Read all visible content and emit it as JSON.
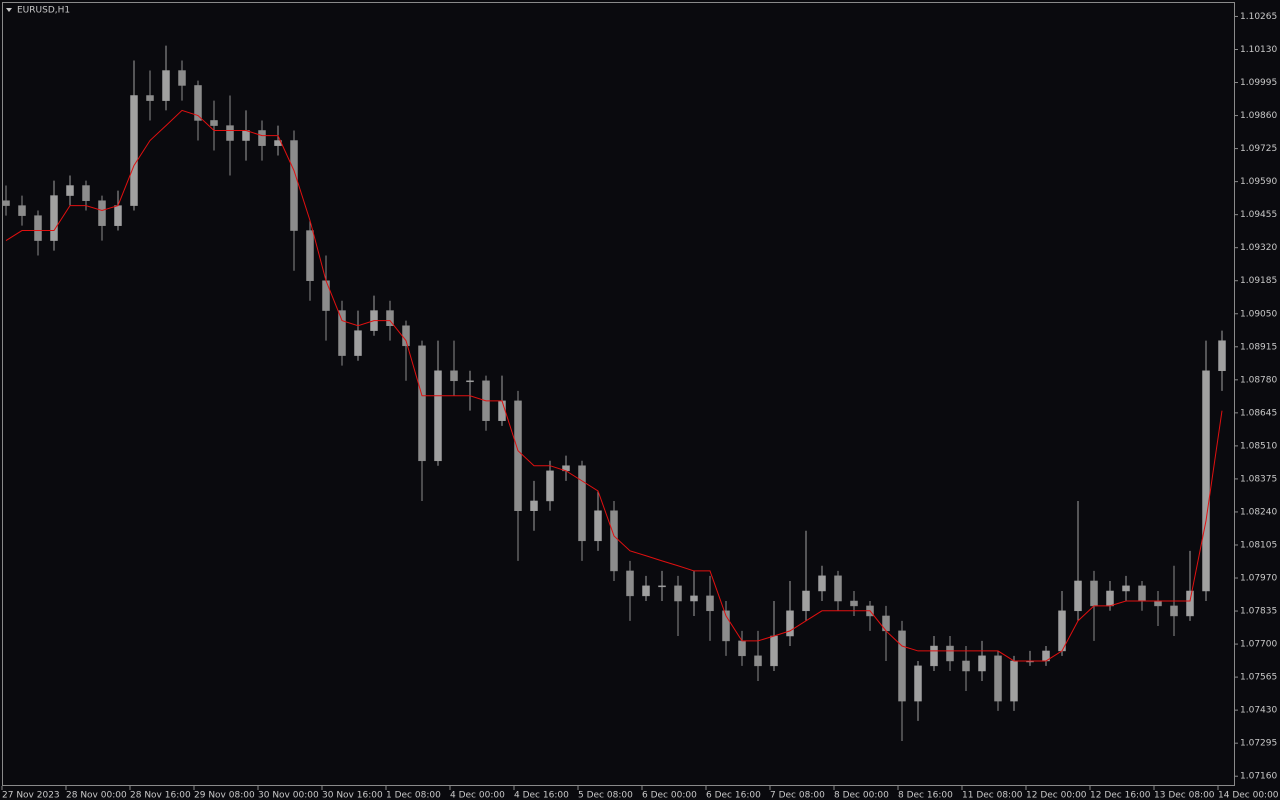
{
  "chart_data": {
    "type": "candlestick",
    "title": "EURUSD,H1",
    "up_color": "#a0a0a0",
    "down_color": "#8c8c8c",
    "grid": false,
    "ylim": [
      1.0712,
      1.1032
    ],
    "yticks": [
      1.10265,
      {
        "value": 1.1013,
        "label": "1.10130"
      },
      1.09995,
      {
        "value": 1.0986,
        "label": "1.09860"
      },
      1.09725,
      {
        "value": 1.0959,
        "label": "1.09590"
      },
      1.09455,
      {
        "value": 1.0932,
        "label": "1.09320"
      },
      1.09185,
      {
        "value": 1.0905,
        "label": "1.09050"
      },
      1.08915,
      {
        "value": 1.0878,
        "label": "1.08780"
      },
      1.08645,
      {
        "value": 1.0851,
        "label": "1.08510"
      },
      1.08375,
      {
        "value": 1.0824,
        "label": "1.08240"
      },
      1.08105,
      {
        "value": 1.0797,
        "label": "1.07970"
      },
      1.07835,
      {
        "value": 1.077,
        "label": "1.07700"
      },
      1.07565,
      {
        "value": 1.0743,
        "label": "1.07430"
      },
      1.07295,
      {
        "value": 1.0716,
        "label": "1.07160"
      }
    ],
    "categories": [
      "27 Nov 2023",
      null,
      null,
      null,
      "28 Nov 00:00",
      null,
      null,
      null,
      "28 Nov 16:00",
      null,
      null,
      null,
      "29 Nov 08:00",
      null,
      null,
      null,
      "30 Nov 00:00",
      null,
      null,
      null,
      "30 Nov 16:00",
      null,
      null,
      null,
      "1 Dec 08:00",
      null,
      null,
      null,
      "4 Dec 00:00",
      null,
      null,
      null,
      "4 Dec 16:00",
      null,
      null,
      null,
      "5 Dec 08:00",
      null,
      null,
      null,
      "6 Dec 00:00",
      null,
      null,
      null,
      "6 Dec 16:00",
      null,
      null,
      null,
      "7 Dec 08:00",
      null,
      null,
      null,
      "8 Dec 00:00",
      null,
      null,
      null,
      "8 Dec 16:00",
      null,
      null,
      null,
      "11 Dec 08:00",
      null,
      null,
      null,
      "12 Dec 00:00",
      null,
      null,
      null,
      "12 Dec 16:00",
      null,
      null,
      null,
      "13 Dec 08:00",
      null,
      null,
      null,
      "14 Dec 00:00"
    ],
    "open": [
      1.09512,
      1.09492,
      1.09451,
      1.09349,
      1.09533,
      1.09574,
      1.09512,
      1.0941,
      1.09492,
      1.09942,
      1.09921,
      1.10044,
      1.09983,
      1.0984,
      1.09819,
      1.09758,
      1.09799,
      1.09737,
      1.09758,
      1.0939,
      1.09185,
      1.09063,
      1.08879,
      1.08981,
      1.09063,
      1.09001,
      1.08919,
      1.08449,
      1.08817,
      1.08776,
      1.08776,
      1.08613,
      1.08694,
      1.08245,
      1.08285,
      1.08408,
      1.08429,
      1.08122,
      1.08245,
      1.07999,
      1.07897,
      1.07938,
      1.07938,
      1.07876,
      1.07897,
      1.07836,
      1.07713,
      1.07652,
      1.07611,
      1.07733,
      1.07836,
      1.07917,
      1.07979,
      1.07876,
      1.07856,
      1.07815,
      1.07754,
      1.07467,
      1.07611,
      1.07692,
      1.07631,
      1.0759,
      1.07652,
      1.07467,
      1.07631,
      1.07631,
      1.07672,
      1.07836,
      1.07958,
      1.07856,
      1.07917,
      1.07938,
      1.07876,
      1.07856,
      1.07815,
      1.07917,
      1.08817
    ],
    "high": [
      1.09574,
      1.09533,
      1.09472,
      1.09594,
      1.09615,
      1.09594,
      1.09533,
      1.09553,
      1.10085,
      1.10044,
      1.10146,
      1.10085,
      1.10003,
      1.09921,
      1.09942,
      1.09881,
      1.0984,
      1.09819,
      1.09799,
      1.09431,
      1.09288,
      1.09103,
      1.09063,
      1.09124,
      1.09103,
      1.09022,
      1.0894,
      1.0894,
      1.0894,
      1.08817,
      1.08797,
      1.08797,
      1.08735,
      1.08367,
      1.08449,
      1.0847,
      1.08449,
      1.08326,
      1.08285,
      1.0804,
      1.07979,
      1.07999,
      1.07979,
      1.07999,
      1.07979,
      1.07876,
      1.07754,
      1.07754,
      1.07876,
      1.07958,
      1.08163,
      1.0802,
      1.07999,
      1.07917,
      1.07876,
      1.07856,
      1.07795,
      1.07631,
      1.07733,
      1.07733,
      1.07692,
      1.07713,
      1.07672,
      1.07652,
      1.07672,
      1.07692,
      1.07917,
      1.08285,
      1.07999,
      1.07958,
      1.07979,
      1.07958,
      1.07917,
      1.0802,
      1.08081,
      1.0894,
      1.08981
    ],
    "low": [
      1.09451,
      1.0941,
      1.09288,
      1.09308,
      1.09492,
      1.09472,
      1.09349,
      1.0939,
      1.09472,
      1.0984,
      1.09881,
      1.09921,
      1.09758,
      1.09717,
      1.09615,
      1.09676,
      1.09676,
      1.09697,
      1.09226,
      1.09103,
      1.0894,
      1.08838,
      1.08858,
      1.0896,
      1.0894,
      1.08776,
      1.08285,
      1.08429,
      1.08715,
      1.08654,
      1.08572,
      1.08592,
      1.0804,
      1.08163,
      1.08245,
      1.08367,
      1.0804,
      1.08081,
      1.07958,
      1.07795,
      1.07876,
      1.07876,
      1.07733,
      1.07815,
      1.07713,
      1.07652,
      1.07611,
      1.07549,
      1.0759,
      1.07692,
      1.07795,
      1.07876,
      1.07836,
      1.07815,
      1.07754,
      1.07631,
      1.07304,
      1.07386,
      1.0759,
      1.0759,
      1.07508,
      1.07549,
      1.07427,
      1.07427,
      1.07611,
      1.07611,
      1.07652,
      1.07795,
      1.07713,
      1.07836,
      1.07876,
      1.07836,
      1.07774,
      1.07733,
      1.07795,
      1.07876,
      1.08735
    ],
    "close": [
      1.09492,
      1.09451,
      1.09349,
      1.09533,
      1.09574,
      1.09512,
      1.0941,
      1.09492,
      1.09942,
      1.09921,
      1.10044,
      1.09983,
      1.0984,
      1.09819,
      1.09758,
      1.09799,
      1.09737,
      1.09758,
      1.0939,
      1.09185,
      1.09063,
      1.08879,
      1.08981,
      1.09063,
      1.09001,
      1.08919,
      1.08449,
      1.08817,
      1.08776,
      1.08776,
      1.08613,
      1.08694,
      1.08245,
      1.08285,
      1.08408,
      1.08429,
      1.08122,
      1.08245,
      1.07999,
      1.07897,
      1.07938,
      1.07938,
      1.07876,
      1.07897,
      1.07836,
      1.07713,
      1.07652,
      1.07611,
      1.07733,
      1.07836,
      1.07917,
      1.07979,
      1.07876,
      1.07856,
      1.07815,
      1.07754,
      1.07467,
      1.07611,
      1.07692,
      1.07631,
      1.0759,
      1.07652,
      1.07467,
      1.07631,
      1.07631,
      1.07672,
      1.07836,
      1.07958,
      1.07856,
      1.07917,
      1.07938,
      1.07876,
      1.07856,
      1.07815,
      1.07917,
      1.08817,
      1.0894
    ],
    "ma": {
      "color": "#e01010",
      "values": [
        1.09349,
        1.0939,
        1.0939,
        1.0939,
        1.09492,
        1.09492,
        1.09472,
        1.09492,
        1.09656,
        1.09758,
        1.09819,
        1.09881,
        1.0986,
        1.09799,
        1.09799,
        1.09799,
        1.09778,
        1.09778,
        1.09635,
        1.09431,
        1.09185,
        1.09022,
        1.09001,
        1.09022,
        1.09022,
        1.0894,
        1.08715,
        1.08715,
        1.08715,
        1.08715,
        1.08694,
        1.08694,
        1.0849,
        1.08429,
        1.08429,
        1.08408,
        1.08367,
        1.08326,
        1.08142,
        1.08081,
        1.08061,
        1.0804,
        1.0802,
        1.07999,
        1.07999,
        1.07815,
        1.07713,
        1.07713,
        1.07733,
        1.07754,
        1.07795,
        1.07836,
        1.07836,
        1.07836,
        1.07836,
        1.07754,
        1.07692,
        1.07672,
        1.07672,
        1.07672,
        1.07672,
        1.07672,
        1.07672,
        1.07631,
        1.07631,
        1.07631,
        1.07672,
        1.07795,
        1.07856,
        1.07856,
        1.07876,
        1.07876,
        1.07876,
        1.07876,
        1.07876,
        1.08204,
        1.08654
      ]
    }
  }
}
